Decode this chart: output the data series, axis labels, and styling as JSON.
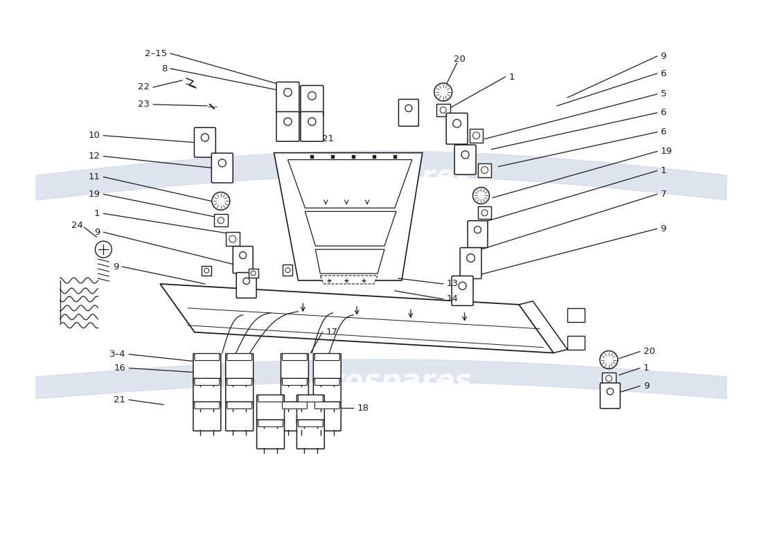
{
  "bg_color": "#ffffff",
  "line_color": "#1a1a1a",
  "watermark_color": "#c5cfe0",
  "watermark_alpha": 0.55,
  "figsize": [
    11.0,
    8.0
  ],
  "dpi": 100
}
